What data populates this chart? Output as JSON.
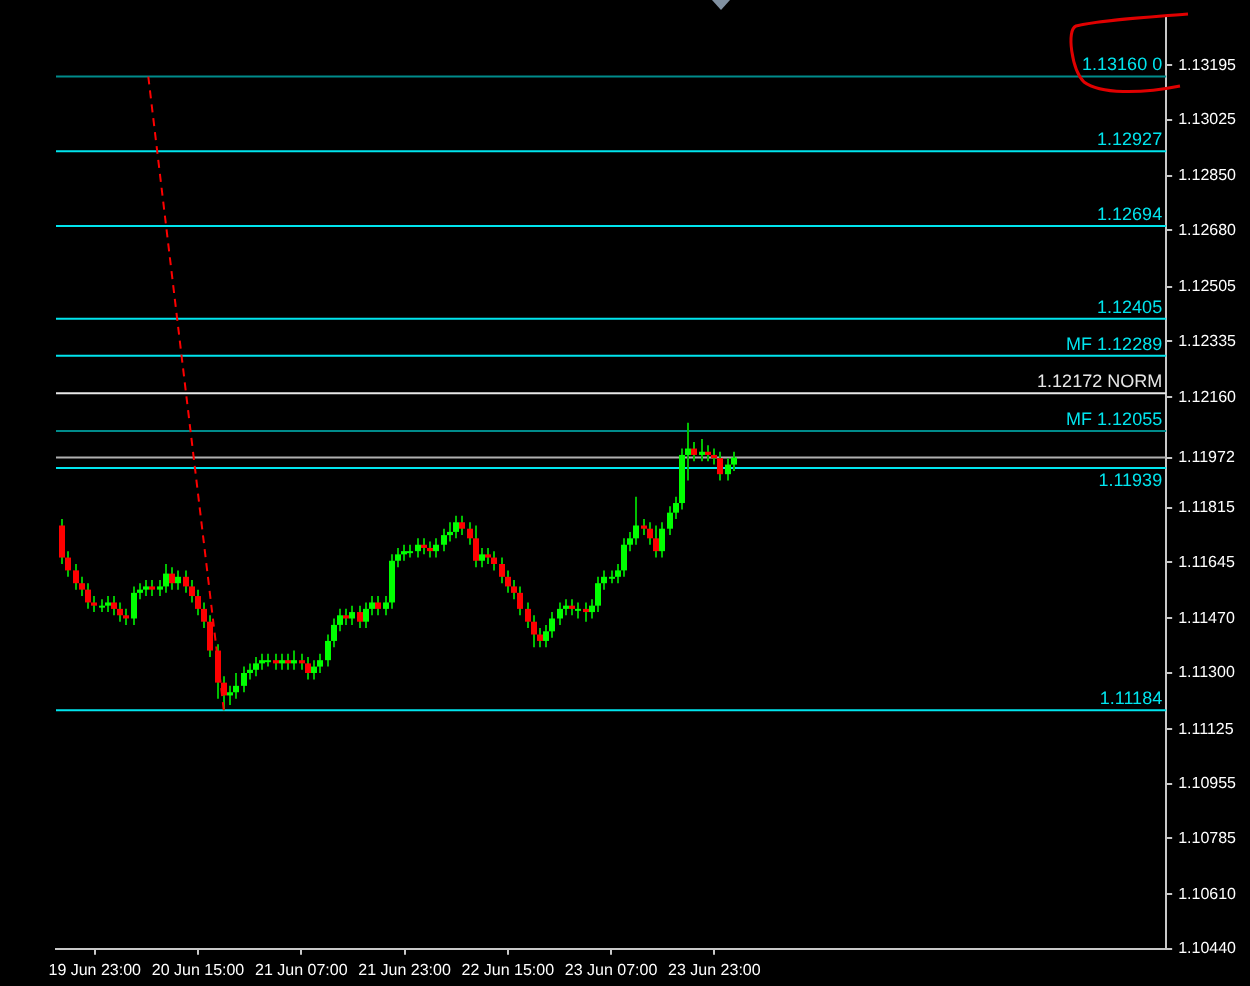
{
  "chart_data": {
    "type": "candlestick",
    "x": [
      "--06-19T18:00",
      "--06-19T19:00",
      "--06-19T20:00",
      "--06-19T21:00",
      "--06-19T22:00",
      "--06-19T23:00",
      "--06-20T00:00",
      "--06-20T01:00",
      "--06-20T02:00",
      "--06-20T03:00",
      "--06-20T04:00",
      "--06-20T05:00",
      "--06-20T06:00",
      "--06-20T07:00",
      "--06-20T08:00",
      "--06-20T09:00",
      "--06-20T10:00",
      "--06-20T11:00",
      "--06-20T12:00",
      "--06-20T13:00",
      "--06-20T14:00",
      "--06-20T15:00",
      "--06-20T16:00",
      "--06-20T17:00",
      "--06-20T18:00",
      "--06-20T19:00",
      "--06-20T20:00",
      "--06-20T21:00",
      "--06-20T22:00",
      "--06-20T23:00",
      "--06-21T00:00",
      "--06-21T01:00",
      "--06-21T02:00",
      "--06-21T03:00",
      "--06-21T04:00",
      "--06-21T05:00",
      "--06-21T06:00",
      "--06-21T07:00",
      "--06-21T08:00",
      "--06-21T09:00",
      "--06-21T10:00",
      "--06-21T11:00",
      "--06-21T12:00",
      "--06-21T13:00",
      "--06-21T14:00",
      "--06-21T15:00",
      "--06-21T16:00",
      "--06-21T17:00",
      "--06-21T18:00",
      "--06-21T19:00",
      "--06-21T20:00",
      "--06-21T21:00",
      "--06-21T22:00",
      "--06-21T23:00",
      "--06-22T00:00",
      "--06-22T01:00",
      "--06-22T02:00",
      "--06-22T03:00",
      "--06-22T04:00",
      "--06-22T05:00",
      "--06-22T06:00",
      "--06-22T07:00",
      "--06-22T08:00",
      "--06-22T09:00",
      "--06-22T10:00",
      "--06-22T11:00",
      "--06-22T12:00",
      "--06-22T13:00",
      "--06-22T14:00",
      "--06-22T15:00",
      "--06-22T16:00",
      "--06-22T17:00",
      "--06-22T18:00",
      "--06-22T19:00",
      "--06-22T20:00",
      "--06-22T21:00",
      "--06-22T22:00",
      "--06-22T23:00",
      "--06-23T00:00",
      "--06-23T01:00",
      "--06-23T02:00",
      "--06-23T03:00",
      "--06-23T04:00",
      "--06-23T05:00",
      "--06-23T06:00",
      "--06-23T07:00",
      "--06-23T08:00",
      "--06-23T09:00",
      "--06-23T10:00",
      "--06-23T11:00",
      "--06-23T12:00",
      "--06-23T13:00",
      "--06-23T14:00",
      "--06-23T15:00",
      "--06-23T16:00",
      "--06-23T17:00",
      "--06-23T18:00",
      "--06-23T19:00",
      "--06-23T20:00",
      "--06-23T21:00",
      "--06-23T22:00",
      "--06-23T23:00",
      "--06-24T00:00",
      "--06-24T01:00",
      "--06-24T02:00"
    ],
    "ohlc": [
      [
        1.1176,
        1.1178,
        1.1164,
        1.1166
      ],
      [
        1.1166,
        1.1168,
        1.116,
        1.1162
      ],
      [
        1.1162,
        1.1164,
        1.1156,
        1.1158
      ],
      [
        1.1158,
        1.116,
        1.1154,
        1.1156
      ],
      [
        1.1156,
        1.1158,
        1.115,
        1.1152
      ],
      [
        1.1152,
        1.1154,
        1.1149,
        1.1151
      ],
      [
        1.1151,
        1.1153,
        1.1149,
        1.1151
      ],
      [
        1.1151,
        1.1154,
        1.1149,
        1.1152
      ],
      [
        1.1152,
        1.1154,
        1.1148,
        1.115
      ],
      [
        1.115,
        1.1152,
        1.1146,
        1.1148
      ],
      [
        1.1148,
        1.115,
        1.1145,
        1.1147
      ],
      [
        1.1147,
        1.1157,
        1.1145,
        1.1155
      ],
      [
        1.1155,
        1.1158,
        1.1153,
        1.1156
      ],
      [
        1.1156,
        1.1159,
        1.1154,
        1.1157
      ],
      [
        1.1157,
        1.1159,
        1.1154,
        1.1156
      ],
      [
        1.1156,
        1.1159,
        1.1154,
        1.1157
      ],
      [
        1.1157,
        1.1164,
        1.1155,
        1.1161
      ],
      [
        1.1161,
        1.1163,
        1.1156,
        1.1158
      ],
      [
        1.1158,
        1.1162,
        1.1156,
        1.116
      ],
      [
        1.116,
        1.1162,
        1.1155,
        1.1157
      ],
      [
        1.1157,
        1.1159,
        1.1152,
        1.1154
      ],
      [
        1.1154,
        1.1156,
        1.1148,
        1.115
      ],
      [
        1.115,
        1.1152,
        1.1144,
        1.1146
      ],
      [
        1.1146,
        1.1148,
        1.1135,
        1.1137
      ],
      [
        1.1137,
        1.1139,
        1.1122,
        1.1127
      ],
      [
        1.1127,
        1.1129,
        1.11184,
        1.1123
      ],
      [
        1.1123,
        1.1126,
        1.112,
        1.1124
      ],
      [
        1.1124,
        1.113,
        1.1122,
        1.1126
      ],
      [
        1.1126,
        1.1132,
        1.1124,
        1.113
      ],
      [
        1.113,
        1.1133,
        1.1128,
        1.1131
      ],
      [
        1.1131,
        1.1135,
        1.1129,
        1.1133
      ],
      [
        1.1133,
        1.1136,
        1.1131,
        1.1134
      ],
      [
        1.1134,
        1.1136,
        1.1132,
        1.1134
      ],
      [
        1.1134,
        1.1136,
        1.1131,
        1.1133
      ],
      [
        1.1133,
        1.1136,
        1.1131,
        1.1134
      ],
      [
        1.1134,
        1.1136,
        1.1131,
        1.1133
      ],
      [
        1.1133,
        1.1137,
        1.1131,
        1.1134
      ],
      [
        1.1134,
        1.1136,
        1.1131,
        1.1133
      ],
      [
        1.1133,
        1.1135,
        1.1128,
        1.113
      ],
      [
        1.113,
        1.1134,
        1.1128,
        1.1132
      ],
      [
        1.1132,
        1.1136,
        1.113,
        1.1134
      ],
      [
        1.1134,
        1.1142,
        1.1132,
        1.114
      ],
      [
        1.114,
        1.1147,
        1.1138,
        1.1145
      ],
      [
        1.1145,
        1.115,
        1.1143,
        1.1148
      ],
      [
        1.1148,
        1.115,
        1.1145,
        1.1147
      ],
      [
        1.1147,
        1.1151,
        1.1145,
        1.1149
      ],
      [
        1.1149,
        1.1151,
        1.1144,
        1.1146
      ],
      [
        1.1146,
        1.1152,
        1.1144,
        1.115
      ],
      [
        1.115,
        1.1154,
        1.1148,
        1.1152
      ],
      [
        1.1152,
        1.1154,
        1.1148,
        1.115
      ],
      [
        1.115,
        1.1154,
        1.1148,
        1.1152
      ],
      [
        1.1152,
        1.1167,
        1.115,
        1.1165
      ],
      [
        1.1165,
        1.1169,
        1.1163,
        1.1167
      ],
      [
        1.1167,
        1.117,
        1.1165,
        1.1168
      ],
      [
        1.1168,
        1.117,
        1.1166,
        1.1168
      ],
      [
        1.1168,
        1.1172,
        1.1166,
        1.117
      ],
      [
        1.117,
        1.1172,
        1.1167,
        1.1169
      ],
      [
        1.1169,
        1.1171,
        1.1166,
        1.1168
      ],
      [
        1.1168,
        1.1172,
        1.1166,
        1.117
      ],
      [
        1.117,
        1.1175,
        1.1168,
        1.1173
      ],
      [
        1.1173,
        1.1177,
        1.1171,
        1.1174
      ],
      [
        1.1174,
        1.1179,
        1.1172,
        1.1177
      ],
      [
        1.1177,
        1.1179,
        1.1173,
        1.1175
      ],
      [
        1.1175,
        1.1177,
        1.117,
        1.1172
      ],
      [
        1.1172,
        1.1176,
        1.1163,
        1.1165
      ],
      [
        1.1165,
        1.1169,
        1.1163,
        1.1167
      ],
      [
        1.1167,
        1.1169,
        1.1164,
        1.1166
      ],
      [
        1.1166,
        1.1168,
        1.1162,
        1.1164
      ],
      [
        1.1164,
        1.1166,
        1.1158,
        1.116
      ],
      [
        1.116,
        1.1162,
        1.1155,
        1.1157
      ],
      [
        1.1157,
        1.1159,
        1.1153,
        1.1155
      ],
      [
        1.1155,
        1.1157,
        1.1148,
        1.115
      ],
      [
        1.115,
        1.1152,
        1.1144,
        1.1146
      ],
      [
        1.1146,
        1.1148,
        1.1138,
        1.1142
      ],
      [
        1.1142,
        1.1144,
        1.1138,
        1.114
      ],
      [
        1.114,
        1.1145,
        1.1138,
        1.1143
      ],
      [
        1.1143,
        1.1149,
        1.1141,
        1.1147
      ],
      [
        1.1147,
        1.1152,
        1.1145,
        1.115
      ],
      [
        1.115,
        1.1153,
        1.1148,
        1.1151
      ],
      [
        1.1151,
        1.1153,
        1.1148,
        1.115
      ],
      [
        1.115,
        1.1152,
        1.1147,
        1.115
      ],
      [
        1.115,
        1.1152,
        1.1146,
        1.1149
      ],
      [
        1.1149,
        1.1153,
        1.1147,
        1.1151
      ],
      [
        1.1151,
        1.116,
        1.1149,
        1.1158
      ],
      [
        1.1158,
        1.1162,
        1.1156,
        1.116
      ],
      [
        1.116,
        1.1162,
        1.1158,
        1.116
      ],
      [
        1.116,
        1.1164,
        1.1158,
        1.1162
      ],
      [
        1.1162,
        1.1172,
        1.116,
        1.117
      ],
      [
        1.117,
        1.1174,
        1.1168,
        1.1172
      ],
      [
        1.1172,
        1.1185,
        1.117,
        1.1176
      ],
      [
        1.1176,
        1.1178,
        1.1173,
        1.1175
      ],
      [
        1.1175,
        1.1177,
        1.117,
        1.1172
      ],
      [
        1.1172,
        1.1176,
        1.1166,
        1.1168
      ],
      [
        1.1168,
        1.1177,
        1.1166,
        1.1175
      ],
      [
        1.1175,
        1.1182,
        1.1173,
        1.118
      ],
      [
        1.118,
        1.1185,
        1.1178,
        1.1183
      ],
      [
        1.1183,
        1.12,
        1.1181,
        1.1198
      ],
      [
        1.1198,
        1.1208,
        1.119,
        1.12
      ],
      [
        1.12,
        1.1202,
        1.1196,
        1.1198
      ],
      [
        1.1198,
        1.1203,
        1.1196,
        1.1199
      ],
      [
        1.1199,
        1.1201,
        1.1196,
        1.1198
      ],
      [
        1.1198,
        1.12,
        1.1195,
        1.1197
      ],
      [
        1.1197,
        1.1199,
        1.119,
        1.1192
      ],
      [
        1.1192,
        1.1197,
        1.119,
        1.1195
      ],
      [
        1.1195,
        1.1199,
        1.1193,
        1.11972
      ]
    ],
    "series": [
      {
        "type": "line",
        "x": [
          "--06-20T07:18",
          "--06-20T19:00"
        ],
        "values": [
          1.1316,
          1.11184
        ],
        "color": "#ff0000",
        "line_style": "dashed"
      }
    ],
    "xlim": [
      "--06-19T17:00",
      "--06-26T21:00"
    ],
    "xticks": [
      {
        "value": "--06-19T23:00",
        "label": "19 Jun 23:00"
      },
      {
        "value": "--06-20T15:00",
        "label": "20 Jun 15:00"
      },
      {
        "value": "--06-21T07:00",
        "label": "21 Jun 07:00"
      },
      {
        "value": "--06-21T23:00",
        "label": "21 Jun 23:00"
      },
      {
        "value": "--06-22T15:00",
        "label": "22 Jun 15:00"
      },
      {
        "value": "--06-23T07:00",
        "label": "23 Jun 07:00"
      },
      {
        "value": "--06-23T23:00",
        "label": "23 Jun 23:00"
      }
    ],
    "ylim": [
      1.1044,
      1.1335
    ],
    "yticks": [
      1.13195,
      1.13025,
      {
        "value": 1.1285,
        "label": "1.12850"
      },
      {
        "value": 1.1268,
        "label": "1.12680"
      },
      1.12505,
      1.12335,
      {
        "value": 1.1216,
        "label": "1.12160"
      },
      1.11972,
      1.11815,
      1.11645,
      {
        "value": 1.1147,
        "label": "1.11470"
      },
      {
        "value": 1.113,
        "label": "1.11300"
      },
      1.11125,
      1.10955,
      1.10785,
      {
        "value": 1.1061,
        "label": "1.10610"
      },
      {
        "value": 1.1044,
        "label": "1.10440"
      }
    ],
    "ref_lines": [
      {
        "axis": "y",
        "value": 1.1316,
        "label": "1.13160 0",
        "color": "#008b8b"
      },
      {
        "axis": "y",
        "value": 1.12927,
        "label": "1.12927",
        "color": "#00e5ee"
      },
      {
        "axis": "y",
        "value": 1.12694,
        "label": "1.12694",
        "color": "#00e5ee"
      },
      {
        "axis": "y",
        "value": 1.12405,
        "label": "1.12405",
        "color": "#00e5ee"
      },
      {
        "axis": "y",
        "value": 1.12289,
        "label": "MF 1.12289",
        "color": "#00e5ee"
      },
      {
        "axis": "y",
        "value": 1.12172,
        "label": "1.12172 NORM",
        "color": "#e8e8e8"
      },
      {
        "axis": "y",
        "value": 1.12055,
        "label": "MF 1.12055",
        "color": "#008b8b"
      },
      {
        "axis": "y",
        "value": 1.11939,
        "label": "1.11939",
        "color": "#00e5ee"
      },
      {
        "axis": "y",
        "value": 1.11184,
        "label": "1.11184",
        "color": "#00e5ee"
      },
      {
        "axis": "y",
        "value": 1.11972,
        "color": "#b0b0b0"
      }
    ],
    "grid": false,
    "legend": false
  }
}
